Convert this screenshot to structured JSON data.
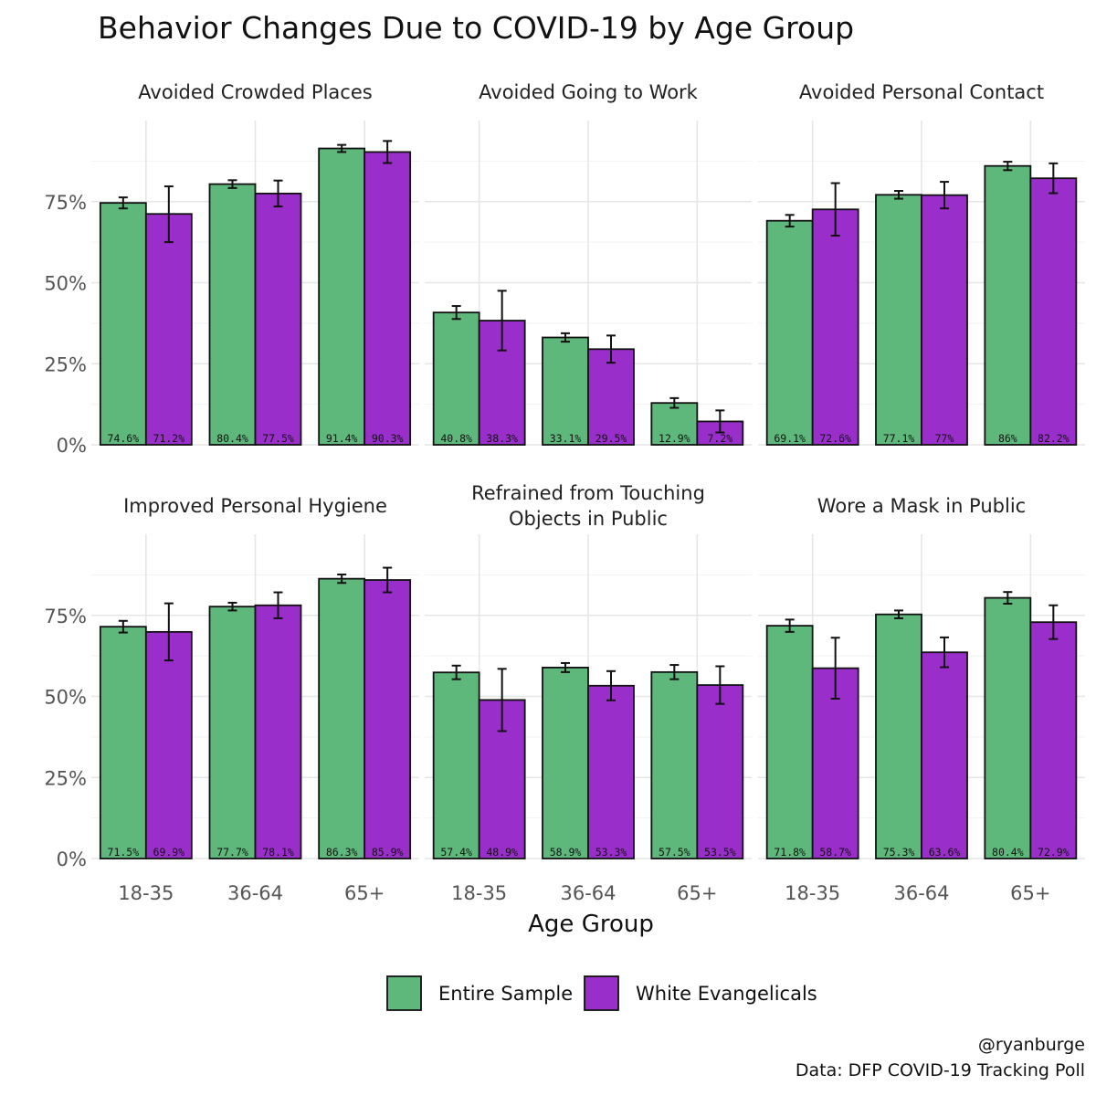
{
  "chart_data": {
    "type": "bar",
    "title": "Behavior Changes Due to COVID-19 by Age Group",
    "xlabel": "Age Group",
    "ylabel": "",
    "ylim": [
      0,
      1
    ],
    "y_ticks": [
      "0%",
      "25%",
      "50%",
      "75%"
    ],
    "categories": [
      "18-35",
      "36-64",
      "65+"
    ],
    "series_names": [
      "Entire Sample",
      "White Evangelicals"
    ],
    "colors": {
      "Entire Sample": "#5eb87c",
      "White Evangelicals": "#9a2ecb"
    },
    "legend_position": "bottom",
    "grid": true,
    "panels": [
      {
        "title": "Avoided Crowded Places",
        "series": [
          {
            "name": "Entire Sample",
            "values": [
              0.746,
              0.804,
              0.914
            ],
            "labels": [
              "74.6%",
              "80.4%",
              "91.4%"
            ],
            "ci": [
              [
                0.729,
                0.763
              ],
              [
                0.792,
                0.816
              ],
              [
                0.903,
                0.925
              ]
            ]
          },
          {
            "name": "White Evangelicals",
            "values": [
              0.712,
              0.775,
              0.903
            ],
            "labels": [
              "71.2%",
              "77.5%",
              "90.3%"
            ],
            "ci": [
              [
                0.625,
                0.797
              ],
              [
                0.735,
                0.815
              ],
              [
                0.869,
                0.937
              ]
            ]
          }
        ]
      },
      {
        "title": "Avoided Going to Work",
        "series": [
          {
            "name": "Entire Sample",
            "values": [
              0.408,
              0.331,
              0.129
            ],
            "labels": [
              "40.8%",
              "33.1%",
              "12.9%"
            ],
            "ci": [
              [
                0.388,
                0.428
              ],
              [
                0.318,
                0.344
              ],
              [
                0.114,
                0.144
              ]
            ]
          },
          {
            "name": "White Evangelicals",
            "values": [
              0.383,
              0.295,
              0.072
            ],
            "labels": [
              "38.3%",
              "29.5%",
              "7.2%"
            ],
            "ci": [
              [
                0.291,
                0.475
              ],
              [
                0.253,
                0.337
              ],
              [
                0.038,
                0.106
              ]
            ]
          }
        ]
      },
      {
        "title": "Avoided Personal Contact",
        "series": [
          {
            "name": "Entire Sample",
            "values": [
              0.691,
              0.771,
              0.86
            ],
            "labels": [
              "69.1%",
              "77.1%",
              "86%"
            ],
            "ci": [
              [
                0.673,
                0.709
              ],
              [
                0.759,
                0.783
              ],
              [
                0.847,
                0.873
              ]
            ]
          },
          {
            "name": "White Evangelicals",
            "values": [
              0.726,
              0.77,
              0.822
            ],
            "labels": [
              "72.6%",
              "77%",
              "82.2%"
            ],
            "ci": [
              [
                0.645,
                0.807
              ],
              [
                0.729,
                0.811
              ],
              [
                0.776,
                0.868
              ]
            ]
          }
        ]
      },
      {
        "title": "Improved Personal Hygiene",
        "series": [
          {
            "name": "Entire Sample",
            "values": [
              0.715,
              0.777,
              0.863
            ],
            "labels": [
              "71.5%",
              "77.7%",
              "86.3%"
            ],
            "ci": [
              [
                0.697,
                0.733
              ],
              [
                0.765,
                0.789
              ],
              [
                0.85,
                0.876
              ]
            ]
          },
          {
            "name": "White Evangelicals",
            "values": [
              0.699,
              0.781,
              0.859
            ],
            "labels": [
              "69.9%",
              "78.1%",
              "85.9%"
            ],
            "ci": [
              [
                0.611,
                0.787
              ],
              [
                0.741,
                0.821
              ],
              [
                0.821,
                0.897
              ]
            ]
          }
        ]
      },
      {
        "title": [
          "Refrained from Touching",
          "Objects in Public"
        ],
        "series": [
          {
            "name": "Entire Sample",
            "values": [
              0.574,
              0.589,
              0.575
            ],
            "labels": [
              "57.4%",
              "58.9%",
              "57.5%"
            ],
            "ci": [
              [
                0.553,
                0.595
              ],
              [
                0.575,
                0.603
              ],
              [
                0.553,
                0.597
              ]
            ]
          },
          {
            "name": "White Evangelicals",
            "values": [
              0.489,
              0.533,
              0.535
            ],
            "labels": [
              "48.9%",
              "53.3%",
              "53.5%"
            ],
            "ci": [
              [
                0.393,
                0.585
              ],
              [
                0.488,
                0.578
              ],
              [
                0.477,
                0.593
              ]
            ]
          }
        ]
      },
      {
        "title": "Wore a Mask in Public",
        "series": [
          {
            "name": "Entire Sample",
            "values": [
              0.718,
              0.753,
              0.804
            ],
            "labels": [
              "71.8%",
              "75.3%",
              "80.4%"
            ],
            "ci": [
              [
                0.699,
                0.737
              ],
              [
                0.741,
                0.765
              ],
              [
                0.786,
                0.822
              ]
            ]
          },
          {
            "name": "White Evangelicals",
            "values": [
              0.587,
              0.636,
              0.729
            ],
            "labels": [
              "58.7%",
              "63.6%",
              "72.9%"
            ],
            "ci": [
              [
                0.493,
                0.681
              ],
              [
                0.59,
                0.682
              ],
              [
                0.677,
                0.781
              ]
            ]
          }
        ]
      }
    ]
  },
  "caption": {
    "handle": "@ryanburge",
    "source": "Data: DFP COVID-19 Tracking Poll"
  }
}
